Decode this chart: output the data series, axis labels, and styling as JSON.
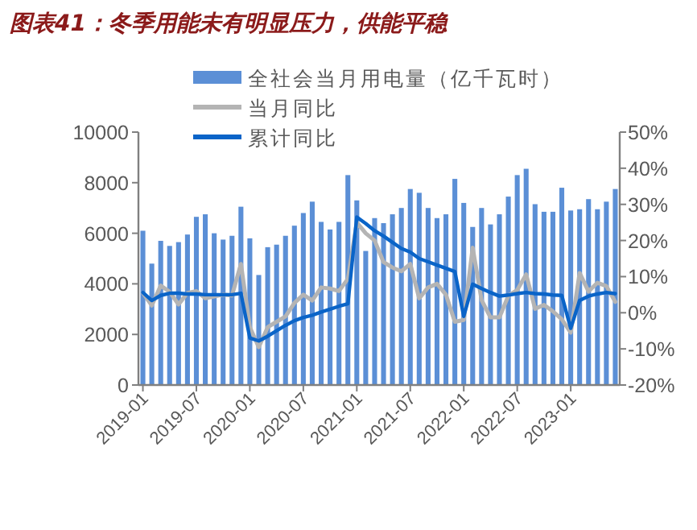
{
  "chart_data": {
    "type": "bar",
    "title": "图表41：冬季用能未有明显压力，供能平稳",
    "categories": [
      "2019-01",
      null,
      null,
      null,
      null,
      null,
      "2019-07",
      null,
      null,
      null,
      null,
      null,
      "2020-01",
      null,
      null,
      null,
      null,
      null,
      "2020-07",
      null,
      null,
      null,
      null,
      null,
      "2021-01",
      null,
      null,
      null,
      null,
      null,
      "2021-07",
      null,
      null,
      null,
      null,
      null,
      "2022-01",
      null,
      null,
      null,
      null,
      null,
      "2022-07",
      null,
      null,
      null,
      null,
      null,
      "2023-01",
      null,
      null,
      null,
      null,
      null
    ],
    "series": [
      {
        "name": "全社会当月用电量（亿千瓦时）",
        "color": "#5b8fd6",
        "values": [
          6100,
          4800,
          5700,
          5500,
          5650,
          5950,
          6650,
          6750,
          6000,
          5750,
          5900,
          7050,
          5800,
          4350,
          5450,
          5550,
          5900,
          6300,
          6800,
          7250,
          6450,
          6150,
          6450,
          8300,
          7300,
          5300,
          6600,
          6400,
          6750,
          7000,
          7750,
          7600,
          7000,
          6600,
          6750,
          8150,
          7200,
          6250,
          7000,
          6350,
          6750,
          7450,
          8300,
          8550,
          7150,
          6850,
          6850,
          7800,
          6900,
          6950,
          7350,
          6950,
          7250,
          7750
        ]
      },
      {
        "name": "当月同比",
        "type": "line",
        "axis": "y2",
        "color": "#b4b4b4",
        "values": [
          5.5,
          2,
          7.5,
          5.8,
          2.3,
          5.5,
          6,
          4,
          4.5,
          5,
          4.8,
          13.5,
          -4,
          -9.5,
          -4,
          -2.5,
          -1,
          2.7,
          5,
          3.4,
          7,
          6.7,
          6,
          9.4,
          25,
          22,
          20,
          14,
          12.5,
          11.5,
          13.5,
          4,
          7,
          8,
          5,
          -2.5,
          -2,
          18,
          3.5,
          -1.3,
          -1.3,
          4.7,
          6.3,
          10.6,
          1.1,
          2.2,
          0.4,
          -1.8,
          -5.5,
          11,
          5.9,
          8.3,
          7.4,
          3
        ]
      },
      {
        "name": "累计同比",
        "type": "line",
        "axis": "y2",
        "color": "#0a64c8",
        "values": [
          5.6,
          3.4,
          4.8,
          5.4,
          5.4,
          5.2,
          5.2,
          5,
          5,
          5,
          5,
          5.4,
          -7,
          -7.8,
          -6.5,
          -5,
          -3.5,
          -2.2,
          -1.3,
          -0.7,
          0.2,
          1,
          1.8,
          2.5,
          26.5,
          24.7,
          22.7,
          21.2,
          19.5,
          17.8,
          16.8,
          15,
          14.1,
          13.2,
          12.3,
          11.4,
          -1,
          7.9,
          6.7,
          5.6,
          4.6,
          4.9,
          5.3,
          5.6,
          5.3,
          5.2,
          4.9,
          4.8,
          -4.3,
          3.4,
          4.6,
          5.2,
          5.6,
          5.3
        ]
      }
    ],
    "ylim": [
      0,
      10000
    ],
    "yticks": [
      0,
      2000,
      4000,
      6000,
      8000,
      10000
    ],
    "y2lim": [
      -20,
      50
    ],
    "y2ticks": [
      {
        "value": -20,
        "label": "-20%"
      },
      {
        "value": -10,
        "label": "-10%"
      },
      {
        "value": 0,
        "label": "0%"
      },
      {
        "value": 10,
        "label": "10%"
      },
      {
        "value": 20,
        "label": "20%"
      },
      {
        "value": 30,
        "label": "30%"
      },
      {
        "value": 40,
        "label": "40%"
      },
      {
        "value": 50,
        "label": "50%"
      }
    ],
    "legend": "top",
    "grid": false,
    "marker": "none",
    "line_style": "solid"
  }
}
